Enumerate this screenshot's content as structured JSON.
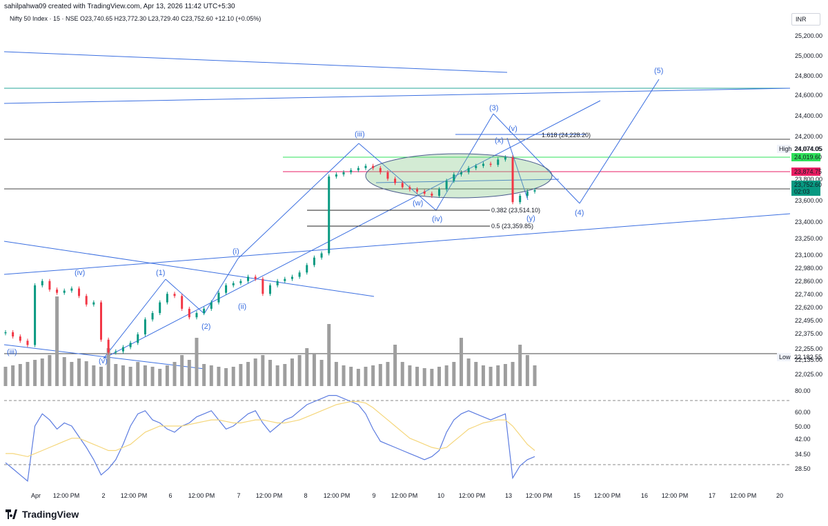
{
  "header": {
    "created_line": "sahilpahwa09 created with TradingView.com, Apr 13, 2026 11:42 UTC+5:30",
    "symbol_line": "Nifty 50 Index · 15 · NSE  O23,740.65  H23,772.30  L23,729.40  C23,752.60  +12.10 (+0.05%)",
    "currency": "INR"
  },
  "brand": {
    "name": "TradingView"
  },
  "colors": {
    "up": "#089981",
    "down": "#f23645",
    "wave": "#3a6ee0",
    "volume": "#9e9e9e",
    "rsi": "#5b7be0",
    "rsi_ma": "#f5d67a"
  },
  "chart_data": [
    {
      "type": "line",
      "title": "Nifty 50 Index · 15 · NSE",
      "note_ohlc": "O23,740.65 H23,772.30 L23,729.40 C23,752.60 +12.10 (+0.05%)",
      "price_scale_labels": [
        "25,200.00",
        "25,000.00",
        "24,800.00",
        "24,600.00",
        "24,400.00",
        "24,200.00",
        "24,074.05",
        "23,800.00",
        "23,600.00",
        "23,400.00",
        "23,250.00",
        "23,100.00",
        "22,980.00",
        "22,860.00",
        "22,740.00",
        "22,620.00",
        "22,495.00",
        "22,375.00",
        "22,255.00",
        "22,135.00",
        "22,025.00"
      ],
      "price_markers": [
        {
          "label": "High",
          "value": "24,074.05"
        },
        {
          "label": "",
          "value": "24,019.60",
          "color": "#2ee05a"
        },
        {
          "label": "",
          "value": "23,874.75",
          "color": "#e91e63"
        },
        {
          "label": "",
          "value": "23,752.60",
          "sub": "02:03",
          "color": "#089981"
        },
        {
          "label": "Low",
          "value": "22,182.55"
        }
      ],
      "x_ticks": [
        "Apr",
        "12:00 PM",
        "2",
        "12:00 PM",
        "6",
        "12:00 PM",
        "7",
        "12:00 PM",
        "8",
        "12:00 PM",
        "9",
        "12:00 PM",
        "10",
        "12:00 PM",
        "13",
        "12:00 PM",
        "15",
        "12:00 PM",
        "16",
        "12:00 PM",
        "17",
        "12:00 PM",
        "20"
      ],
      "wave_labels": [
        "(iii)",
        "(iv)",
        "(v)",
        "(1)",
        "(2)",
        "(i)",
        "(ii)",
        "(iii)",
        "(3)",
        "(v)",
        "(x)",
        "(w)",
        "(iv)",
        "(y)",
        "(4)",
        "(5)"
      ],
      "fib_labels": [
        "1.618 (24,228.20)",
        "0.382 (23,514.10)",
        "0.5 (23,359.85)"
      ],
      "series": [
        {
          "name": "",
          "values": [
            22420,
            22380,
            22340,
            22300,
            22860,
            22900,
            22820,
            22790,
            22810,
            22830,
            22760,
            22680,
            22700,
            22350,
            22230,
            22240,
            22280,
            22320,
            22400,
            22540,
            22600,
            22700,
            22780,
            22760,
            22640,
            22560,
            22600,
            22640,
            22700,
            22790,
            22860,
            22880,
            22900,
            22940,
            22920,
            22780,
            22860,
            22900,
            22920,
            22940,
            22980,
            23050,
            23120,
            23160,
            23880,
            23900,
            23920,
            23940,
            23960,
            23980,
            23960,
            23920,
            23860,
            23820,
            23780,
            23760,
            23740,
            23720,
            23700,
            23760,
            23840,
            23900,
            23920,
            23960,
            23980,
            24000,
            23990,
            24040,
            24060,
            23640,
            23700,
            23740,
            23752.6
          ]
        }
      ]
    },
    {
      "type": "bar",
      "title": "Volume",
      "values": [
        28,
        30,
        32,
        35,
        38,
        40,
        45,
        130,
        42,
        35,
        40,
        36,
        30,
        28,
        55,
        32,
        30,
        28,
        35,
        30,
        28,
        25,
        30,
        35,
        45,
        38,
        70,
        32,
        30,
        28,
        26,
        28,
        32,
        35,
        40,
        45,
        38,
        30,
        32,
        40,
        45,
        55,
        48,
        38,
        90,
        35,
        30,
        28,
        25,
        28,
        30,
        32,
        35,
        60,
        35,
        30,
        28,
        26,
        25,
        28,
        30,
        35,
        70,
        40,
        35,
        30,
        28,
        30,
        32,
        35,
        60,
        45,
        30
      ]
    },
    {
      "type": "line",
      "title": "RSI",
      "y_ticks": [
        "80.00",
        "60.00",
        "50.00",
        "42.00",
        "34.50",
        "28.50"
      ],
      "series": [
        {
          "name": "",
          "values": [
            38,
            34,
            30,
            26,
            62,
            70,
            66,
            60,
            64,
            62,
            55,
            48,
            40,
            30,
            34,
            40,
            50,
            62,
            70,
            72,
            66,
            64,
            60,
            58,
            62,
            64,
            68,
            70,
            72,
            66,
            60,
            62,
            66,
            70,
            72,
            64,
            58,
            62,
            66,
            68,
            72,
            76,
            78,
            80,
            82,
            82,
            80,
            78,
            76,
            70,
            60,
            52,
            50,
            48,
            46,
            44,
            42,
            40,
            42,
            46,
            58,
            66,
            70,
            72,
            70,
            68,
            66,
            68,
            70,
            28,
            36,
            40,
            42
          ]
        },
        {
          "name": "",
          "values": [
            44,
            44,
            43,
            42,
            44,
            46,
            48,
            50,
            52,
            54,
            54,
            52,
            50,
            48,
            46,
            46,
            48,
            50,
            54,
            58,
            60,
            62,
            62,
            62,
            62,
            63,
            64,
            65,
            66,
            66,
            65,
            64,
            64,
            65,
            66,
            66,
            65,
            64,
            64,
            65,
            66,
            68,
            70,
            72,
            74,
            76,
            77,
            78,
            78,
            77,
            74,
            70,
            66,
            62,
            58,
            54,
            52,
            50,
            48,
            47,
            48,
            52,
            56,
            60,
            62,
            64,
            65,
            66,
            66,
            62,
            56,
            50,
            46
          ]
        }
      ]
    }
  ]
}
